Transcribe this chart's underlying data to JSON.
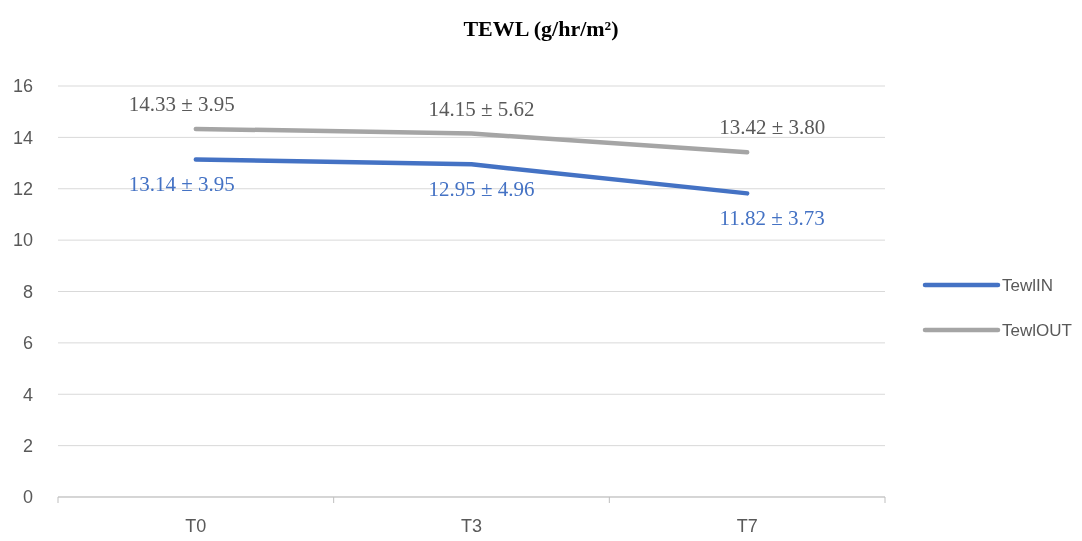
{
  "chart_data": {
    "type": "line",
    "title": "TEWL (g/hr/m²)",
    "categories": [
      "T0",
      "T3",
      "T7"
    ],
    "series": [
      {
        "name": "TewlIN",
        "color": "#4472c4",
        "values": [
          13.14,
          12.95,
          11.82
        ],
        "value_labels": [
          "13.14 ± 3.95",
          "12.95 ± 4.96",
          "11.82 ± 3.73"
        ]
      },
      {
        "name": "TewlOUT",
        "color": "#a5a5a5",
        "values": [
          14.33,
          14.15,
          13.42
        ],
        "value_labels": [
          "14.33 ± 3.95",
          "14.15 ± 5.62",
          "13.42 ± 3.80"
        ]
      }
    ],
    "ylim": [
      0,
      16
    ],
    "yticks": [
      0,
      2,
      4,
      6,
      8,
      10,
      12,
      14,
      16
    ],
    "grid": "y",
    "legend": "right",
    "marker": "none",
    "line_style": "solid"
  }
}
